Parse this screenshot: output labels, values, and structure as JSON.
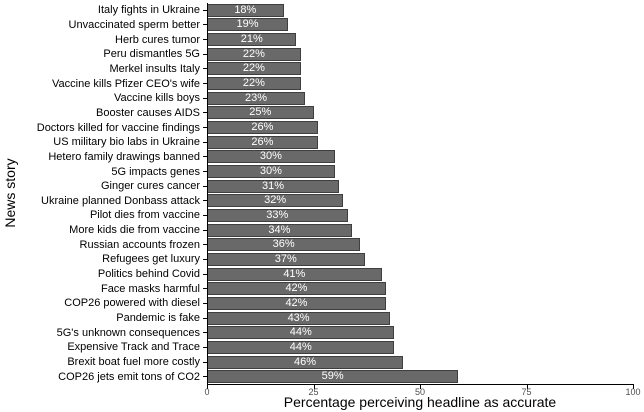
{
  "chart_data": {
    "type": "bar",
    "orientation": "horizontal",
    "title": "",
    "xlabel": "Percentage perceiving headline as accurate",
    "ylabel": "News story",
    "xlim": [
      0,
      100
    ],
    "xticks": [
      0,
      25,
      50,
      75,
      100
    ],
    "xtick_labels": [
      "0",
      "25",
      "50",
      "75",
      "100"
    ],
    "grid": false,
    "legend": false,
    "bar_fill_color": "#696969",
    "bar_border_color": "#3f3f3f",
    "bar_label_color": "#ffffff",
    "axis_color": "#000000",
    "categories": [
      "Italy fights in Ukraine",
      "Unvaccinated sperm better",
      "Herb cures tumor",
      "Peru dismantles 5G",
      "Merkel insults Italy",
      "Vaccine kills Pfizer CEO's wife",
      "Vaccine kills boys",
      "Booster causes AIDS",
      "Doctors killed for vaccine findings",
      "US military bio labs in Ukraine",
      "Hetero family drawings banned",
      "5G impacts genes",
      "Ginger cures cancer",
      "Ukraine planned Donbass attack",
      "Pilot dies from vaccine",
      "More kids die from vaccine",
      "Russian accounts frozen",
      "Refugees get luxury",
      "Politics behind Covid",
      "Face masks harmful",
      "COP26 powered with diesel",
      "Pandemic is fake",
      "5G's unknown consequences",
      "Expensive Track and Trace",
      "Brexit boat fuel more costly",
      "COP26 jets emit tons of CO2"
    ],
    "values": [
      18,
      19,
      21,
      22,
      22,
      22,
      23,
      25,
      26,
      26,
      30,
      30,
      31,
      32,
      33,
      34,
      36,
      37,
      41,
      42,
      42,
      43,
      44,
      44,
      46,
      59
    ],
    "bar_labels": [
      "18%",
      "19%",
      "21%",
      "22%",
      "22%",
      "22%",
      "23%",
      "25%",
      "26%",
      "26%",
      "30%",
      "30%",
      "31%",
      "32%",
      "33%",
      "34%",
      "36%",
      "37%",
      "41%",
      "42%",
      "42%",
      "43%",
      "44%",
      "44%",
      "46%",
      "59%"
    ]
  }
}
